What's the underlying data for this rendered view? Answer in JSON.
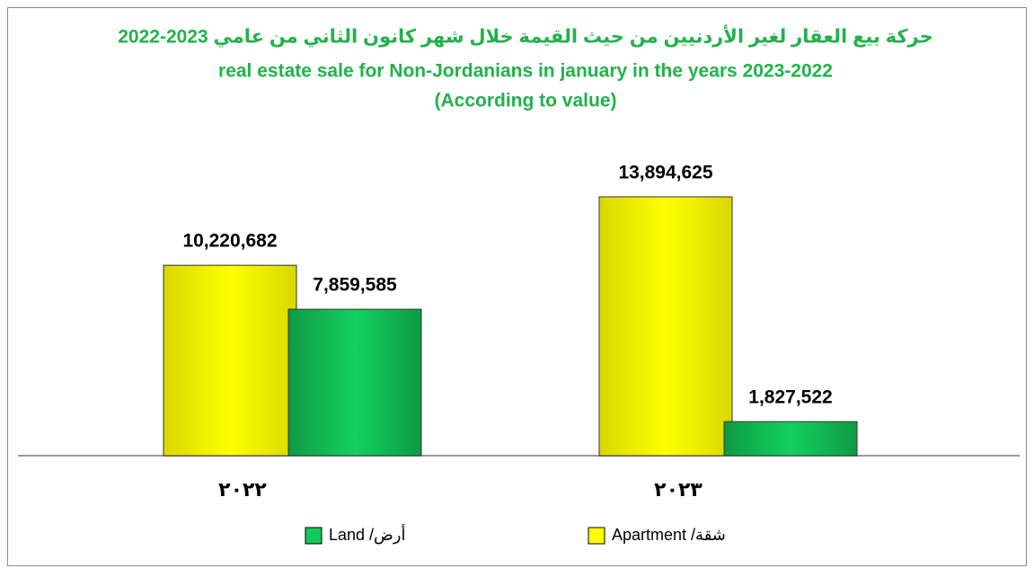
{
  "chart_data": {
    "type": "bar",
    "title": [
      "حركة بيع العقار لغير الأردنيين من حيث القيمة خلال شهر كانون الثاني من عامي 2023-2022",
      "real estate sale for Non-Jordanians in january in the years 2023-2022",
      "(According to value)"
    ],
    "categories": [
      "٢٠٢٢",
      "٢٠٢٣"
    ],
    "series": [
      {
        "name": "شقة/ Apartment",
        "color": "#ffff00",
        "values": [
          10220682,
          13894625
        ],
        "value_labels": [
          "10,220,682",
          "13,894,625"
        ]
      },
      {
        "name": "أرض/ Land",
        "color": "#14c95a",
        "values": [
          7859585,
          1827522
        ],
        "value_labels": [
          "7,859,585",
          "1,827,522"
        ]
      }
    ]
  }
}
